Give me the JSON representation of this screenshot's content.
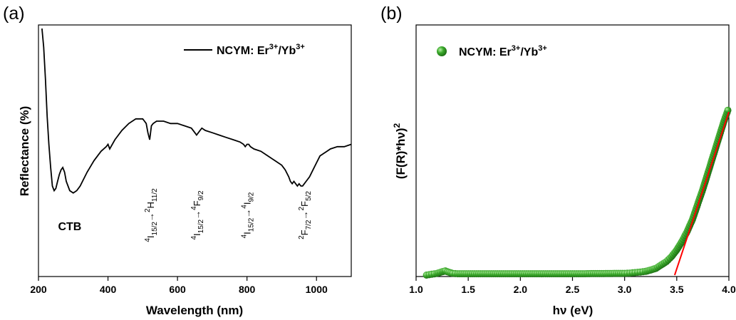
{
  "chart_data": [
    {
      "panel": "(a)",
      "type": "line",
      "xlabel": "Wavelength (nm)",
      "ylabel": "Reflectance (%)",
      "xlim": [
        200,
        1100
      ],
      "ylim": [
        0,
        1
      ],
      "y_ticks_shown": false,
      "xticks": [
        200,
        400,
        600,
        800,
        1000
      ],
      "legend": {
        "position": "top-right",
        "marker": "line",
        "label_parts": [
          "NCYM: Er",
          "3+",
          "/Yb",
          "3+"
        ]
      },
      "series": [
        {
          "name": "NCYM: Er3+/Yb3+",
          "color": "#000000",
          "x": [
            210,
            215,
            220,
            225,
            230,
            235,
            240,
            245,
            250,
            255,
            260,
            265,
            270,
            275,
            280,
            290,
            300,
            310,
            320,
            340,
            360,
            380,
            395,
            400,
            405,
            420,
            440,
            460,
            480,
            500,
            505,
            510,
            515,
            520,
            525,
            530,
            540,
            560,
            580,
            600,
            620,
            640,
            650,
            655,
            660,
            665,
            670,
            680,
            700,
            720,
            740,
            760,
            780,
            790,
            795,
            800,
            805,
            810,
            820,
            840,
            860,
            880,
            900,
            910,
            920,
            925,
            930,
            935,
            940,
            945,
            950,
            955,
            960,
            965,
            970,
            980,
            990,
            1000,
            1010,
            1020,
            1030,
            1040,
            1060,
            1080,
            1100
          ],
          "y": [
            1.0,
            0.92,
            0.78,
            0.62,
            0.5,
            0.4,
            0.32,
            0.3,
            0.31,
            0.34,
            0.37,
            0.39,
            0.4,
            0.38,
            0.34,
            0.3,
            0.29,
            0.3,
            0.32,
            0.38,
            0.43,
            0.47,
            0.49,
            0.5,
            0.48,
            0.52,
            0.56,
            0.59,
            0.61,
            0.61,
            0.6,
            0.59,
            0.55,
            0.52,
            0.58,
            0.59,
            0.6,
            0.6,
            0.59,
            0.59,
            0.58,
            0.57,
            0.55,
            0.54,
            0.55,
            0.56,
            0.57,
            0.56,
            0.55,
            0.54,
            0.53,
            0.52,
            0.51,
            0.5,
            0.49,
            0.5,
            0.5,
            0.49,
            0.48,
            0.47,
            0.45,
            0.43,
            0.41,
            0.39,
            0.36,
            0.34,
            0.33,
            0.34,
            0.33,
            0.32,
            0.33,
            0.32,
            0.32,
            0.33,
            0.34,
            0.36,
            0.39,
            0.42,
            0.45,
            0.46,
            0.47,
            0.48,
            0.49,
            0.49,
            0.5
          ]
        }
      ],
      "annotations": [
        {
          "label": "CTB",
          "x": 290,
          "y": 0.24,
          "orientation": "horizontal"
        },
        {
          "parts": [
            "4",
            "I",
            "15/2",
            "→",
            "2",
            "H",
            "11/2"
          ],
          "x": 522,
          "orientation": "vertical"
        },
        {
          "parts": [
            "4",
            "I",
            "15/2",
            "→",
            "4",
            "F",
            "9/2"
          ],
          "x": 655,
          "orientation": "vertical"
        },
        {
          "parts": [
            "4",
            "I",
            "15/2",
            "→",
            "4",
            "I",
            "9/2"
          ],
          "x": 800,
          "orientation": "vertical"
        },
        {
          "parts": [
            "2",
            "F",
            "7/2",
            "→",
            "2",
            "F",
            "5/2"
          ],
          "x": 965,
          "orientation": "vertical"
        }
      ]
    },
    {
      "panel": "(b)",
      "type": "scatter",
      "xlabel": "hν (eV)",
      "ylabel": "(F(R)*hν)",
      "ylabel_superscript": "2",
      "xlim": [
        1.0,
        4.0
      ],
      "ylim": [
        0,
        1
      ],
      "y_ticks_shown": false,
      "xticks": [
        "1.0",
        "1.5",
        "2.0",
        "2.5",
        "3.0",
        "3.5",
        "4.0"
      ],
      "legend": {
        "position": "top-left",
        "marker": "green-sphere",
        "label_parts": [
          "NCYM: Er",
          "3+",
          "/Yb",
          "3+"
        ]
      },
      "series": [
        {
          "name": "NCYM: Er3+/Yb3+",
          "color": "#2ca02c",
          "x": [
            1.1,
            1.15,
            1.2,
            1.25,
            1.28,
            1.3,
            1.35,
            1.4,
            1.5,
            1.6,
            1.7,
            1.8,
            1.9,
            2.0,
            2.1,
            2.2,
            2.3,
            2.4,
            2.5,
            2.6,
            2.7,
            2.8,
            2.9,
            3.0,
            3.05,
            3.1,
            3.15,
            3.2,
            3.25,
            3.3,
            3.35,
            3.4,
            3.45,
            3.5,
            3.55,
            3.6,
            3.65,
            3.7,
            3.75,
            3.8,
            3.85,
            3.9,
            3.95,
            3.99
          ],
          "y": [
            0.0,
            0.005,
            0.01,
            0.02,
            0.025,
            0.02,
            0.01,
            0.008,
            0.008,
            0.008,
            0.008,
            0.008,
            0.008,
            0.008,
            0.008,
            0.008,
            0.008,
            0.008,
            0.008,
            0.008,
            0.009,
            0.009,
            0.01,
            0.01,
            0.012,
            0.015,
            0.018,
            0.022,
            0.03,
            0.04,
            0.06,
            0.08,
            0.11,
            0.15,
            0.2,
            0.26,
            0.33,
            0.42,
            0.51,
            0.61,
            0.71,
            0.81,
            0.91,
            0.98
          ]
        },
        {
          "name": "linear fit",
          "type": "line",
          "color": "#ff0000",
          "x": [
            3.48,
            4.0
          ],
          "y": [
            0.0,
            0.97
          ]
        }
      ]
    }
  ]
}
